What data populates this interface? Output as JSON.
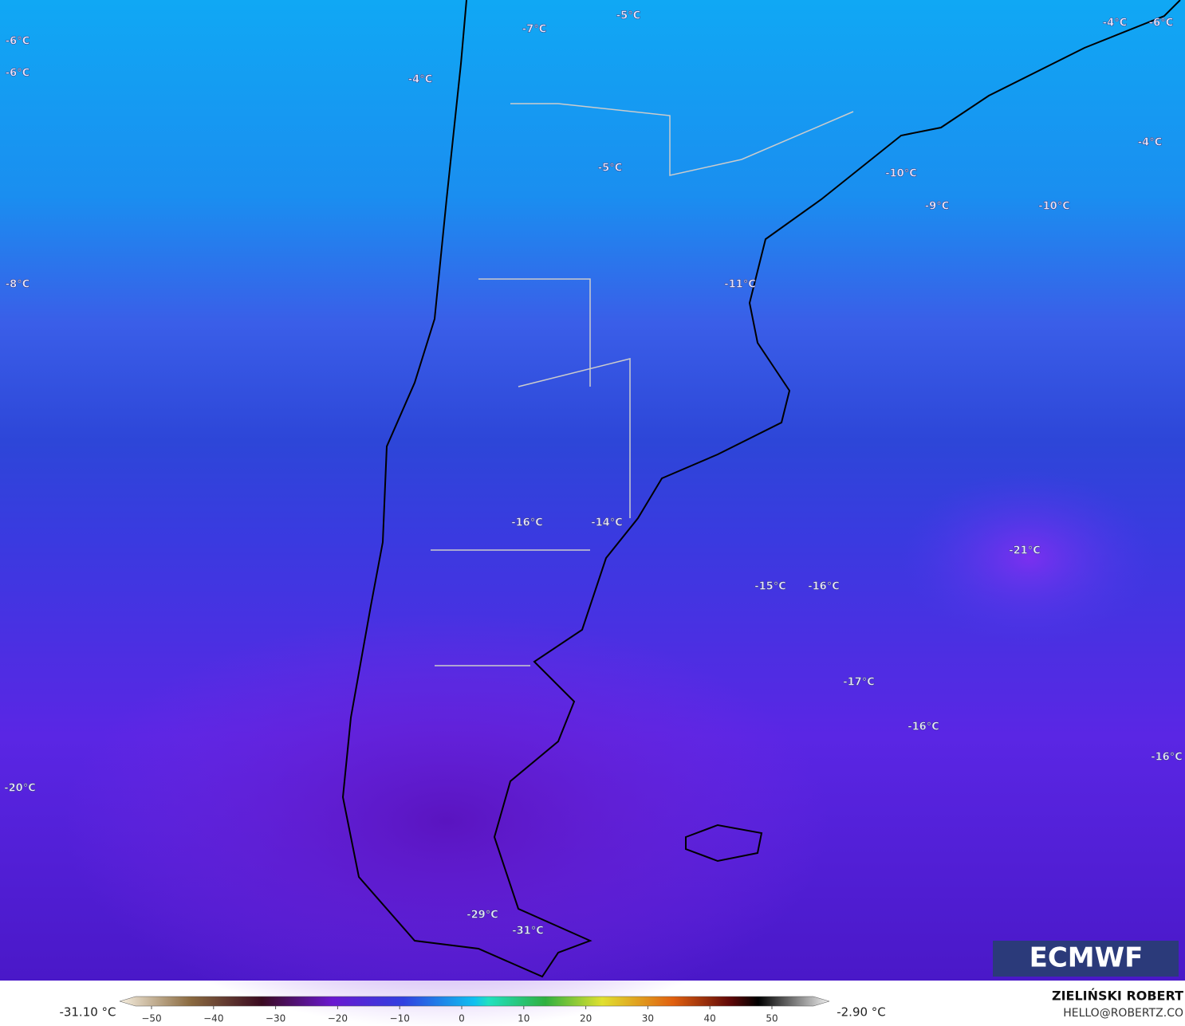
{
  "map": {
    "labels": [
      "-6°C",
      "-6°C",
      "-4°C",
      "-7°C",
      "-5°C",
      "-4°C",
      "-6°C",
      "-4°C",
      "-5°C",
      "-10°C",
      "-9°C",
      "-10°C",
      "-8°C",
      "-11°C",
      "-16°C",
      "-14°C",
      "-21°C",
      "-15°C",
      "-16°C",
      "-17°C",
      "-16°C",
      "-16°C",
      "-20°C",
      "-29°C",
      "-31°C"
    ],
    "logo": "ECMWF"
  },
  "colorbar": {
    "min_label": "-31.10 °C",
    "max_label": "-2.90 °C",
    "ticks": [
      "−50",
      "−40",
      "−30",
      "−20",
      "−10",
      "0",
      "10",
      "20",
      "30",
      "40",
      "50"
    ]
  },
  "credit": {
    "author": "ZIELIŃSKI ROBERT",
    "email": "HELLO@ROBERTZ.CO"
  }
}
